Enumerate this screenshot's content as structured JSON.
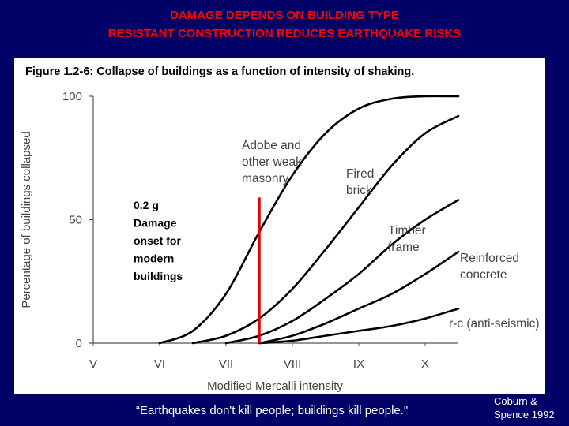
{
  "slide": {
    "title_line1": "DAMAGE DEPENDS ON BUILDING TYPE",
    "title_line2": "RESISTANT CONSTRUCTION REDUCES EARTHQUAKE RISKS",
    "quote": "“Earthquakes don't kill people; buildings kill people.\"",
    "citation_line1": "Coburn &",
    "citation_line2": "Spence 1992"
  },
  "colors": {
    "background": "#000066",
    "title": "#FF0000",
    "marker_line": "#E00000",
    "curves": "#000000"
  },
  "chart_data": {
    "type": "line",
    "caption": "Figure 1.2-6: Collapse of buildings as a function of intensity of shaking.",
    "xlabel": "Modified Mercalli intensity",
    "ylabel": "Percentage of buildings collapsed",
    "x_categories": [
      "V",
      "VI",
      "VII",
      "VIII",
      "IX",
      "X"
    ],
    "x_range": [
      5,
      10.5
    ],
    "ylim": [
      0,
      100
    ],
    "y_ticks": [
      0,
      50,
      100
    ],
    "grid": false,
    "series": [
      {
        "name": "Adobe and other weak masonry",
        "label_lines": [
          "Adobe and",
          "other weak",
          "masonry"
        ],
        "points": [
          [
            6,
            0
          ],
          [
            6.5,
            5
          ],
          [
            7,
            20
          ],
          [
            7.5,
            45
          ],
          [
            8,
            68
          ],
          [
            8.5,
            85
          ],
          [
            9,
            95
          ],
          [
            9.5,
            99
          ],
          [
            10,
            100
          ],
          [
            10.5,
            100
          ]
        ]
      },
      {
        "name": "Fired brick",
        "label_lines": [
          "Fired",
          "brick"
        ],
        "points": [
          [
            6.5,
            0
          ],
          [
            7,
            3
          ],
          [
            7.5,
            10
          ],
          [
            8,
            22
          ],
          [
            8.5,
            38
          ],
          [
            9,
            55
          ],
          [
            9.5,
            72
          ],
          [
            10,
            85
          ],
          [
            10.5,
            92
          ]
        ]
      },
      {
        "name": "Timber frame",
        "label_lines": [
          "Timber",
          "frame"
        ],
        "points": [
          [
            7,
            0
          ],
          [
            7.5,
            3
          ],
          [
            8,
            9
          ],
          [
            8.5,
            18
          ],
          [
            9,
            28
          ],
          [
            9.5,
            40
          ],
          [
            10,
            50
          ],
          [
            10.5,
            58
          ]
        ]
      },
      {
        "name": "Reinforced concrete",
        "label_lines": [
          "Reinforced",
          "concrete"
        ],
        "points": [
          [
            7.5,
            0
          ],
          [
            8,
            3
          ],
          [
            8.5,
            8
          ],
          [
            9,
            14
          ],
          [
            9.5,
            20
          ],
          [
            10,
            28
          ],
          [
            10.5,
            37
          ]
        ]
      },
      {
        "name": "r-c (anti-seismic)",
        "label_lines": [
          "r-c (anti-seismic)"
        ],
        "points": [
          [
            7.5,
            0
          ],
          [
            8,
            1
          ],
          [
            8.5,
            3
          ],
          [
            9,
            5
          ],
          [
            9.5,
            7
          ],
          [
            10,
            10
          ],
          [
            10.5,
            14
          ]
        ]
      }
    ],
    "annotation": {
      "text_lines": [
        "0.2 g",
        "Damage",
        "onset for",
        "modern",
        "buildings"
      ],
      "marker_x": 7.5,
      "marker_y_range": [
        0,
        59
      ]
    }
  }
}
